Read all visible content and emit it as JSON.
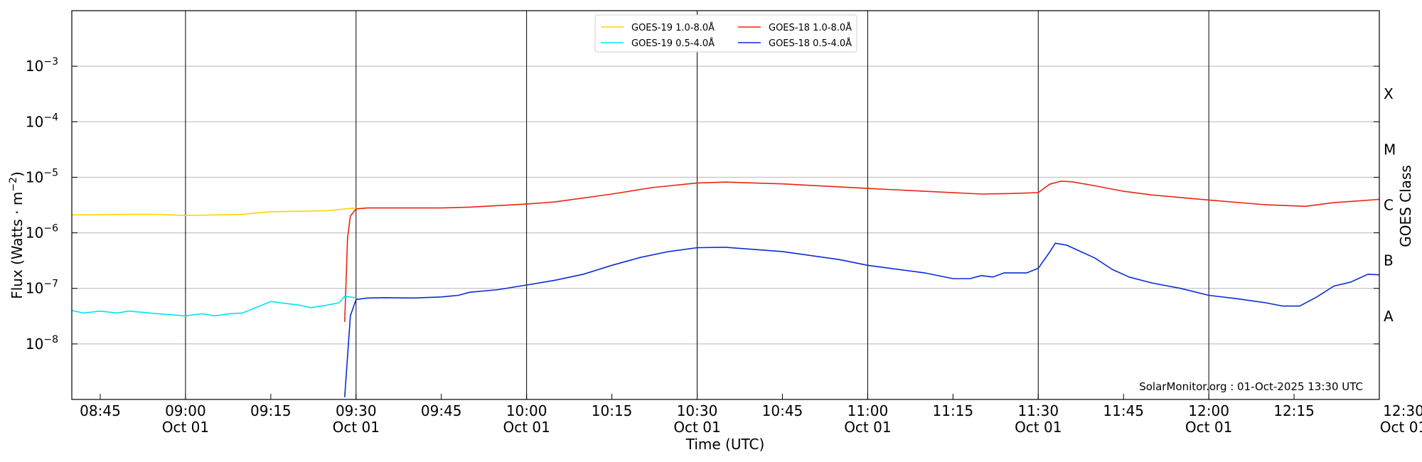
{
  "chart_data": {
    "type": "line",
    "xlabel": "Time (UTC)",
    "ylabel_main": "Flux (Watts · m",
    "ylabel_sup": "−2",
    "ylabel_close": ")",
    "right_axis_label": "GOES Class",
    "credit": "SolarMonitor.org : 01-Oct-2025 13:30 UTC",
    "x_range": [
      "08:40",
      "12:30"
    ],
    "y_scale": "log",
    "ylim": [
      1e-09,
      0.01
    ],
    "grid": "horizontal and vertical",
    "legend_position": "top-center",
    "x_ticks": [
      {
        "time": "08:45",
        "label": "08:45",
        "date": ""
      },
      {
        "time": "09:00",
        "label": "09:00",
        "date": "Oct 01"
      },
      {
        "time": "09:15",
        "label": "09:15",
        "date": ""
      },
      {
        "time": "09:30",
        "label": "09:30",
        "date": "Oct 01"
      },
      {
        "time": "09:45",
        "label": "09:45",
        "date": ""
      },
      {
        "time": "10:00",
        "label": "10:00",
        "date": "Oct 01"
      },
      {
        "time": "10:15",
        "label": "10:15",
        "date": ""
      },
      {
        "time": "10:30",
        "label": "10:30",
        "date": "Oct 01"
      },
      {
        "time": "10:45",
        "label": "10:45",
        "date": ""
      },
      {
        "time": "11:00",
        "label": "11:00",
        "date": "Oct 01"
      },
      {
        "time": "11:15",
        "label": "11:15",
        "date": ""
      },
      {
        "time": "11:30",
        "label": "11:30",
        "date": "Oct 01"
      },
      {
        "time": "11:45",
        "label": "11:45",
        "date": ""
      },
      {
        "time": "12:00",
        "label": "12:00",
        "date": "Oct 01"
      },
      {
        "time": "12:15",
        "label": "12:15",
        "date": ""
      },
      {
        "time": "12:30",
        "label": "12:30",
        "date": "Oct 01"
      }
    ],
    "y_ticks": [
      {
        "value": 1e-08,
        "base": "10",
        "exp": "−8"
      },
      {
        "value": 1e-07,
        "base": "10",
        "exp": "−7"
      },
      {
        "value": 1e-06,
        "base": "10",
        "exp": "−6"
      },
      {
        "value": 1e-05,
        "base": "10",
        "exp": "−5"
      },
      {
        "value": 0.0001,
        "base": "10",
        "exp": "−4"
      },
      {
        "value": 0.001,
        "base": "10",
        "exp": "−3"
      }
    ],
    "goes_classes": [
      {
        "label": "A",
        "value": 3.16e-08
      },
      {
        "label": "B",
        "value": 3.16e-07
      },
      {
        "label": "C",
        "value": 3.16e-06
      },
      {
        "label": "M",
        "value": 3.16e-05
      },
      {
        "label": "X",
        "value": 0.000316
      }
    ],
    "series": [
      {
        "name": "GOES-19 1.0-8.0Å",
        "color": "#ffd400",
        "points": [
          [
            "08:40",
            2.1e-06
          ],
          [
            "08:50",
            2.15e-06
          ],
          [
            "08:55",
            2.15e-06
          ],
          [
            "09:00",
            2.05e-06
          ],
          [
            "09:05",
            2.1e-06
          ],
          [
            "09:10",
            2.15e-06
          ],
          [
            "09:15",
            2.4e-06
          ],
          [
            "09:20",
            2.45e-06
          ],
          [
            "09:25",
            2.5e-06
          ],
          [
            "09:28",
            2.7e-06
          ],
          [
            "09:30",
            2.8e-06
          ]
        ]
      },
      {
        "name": "GOES-18 1.0-8.0Å",
        "color": "#e8250f",
        "points": [
          [
            "09:28",
            2.5e-08
          ],
          [
            "09:28:30",
            8e-07
          ],
          [
            "09:29",
            2e-06
          ],
          [
            "09:30",
            2.7e-06
          ],
          [
            "09:32",
            2.8e-06
          ],
          [
            "09:45",
            2.8e-06
          ],
          [
            "09:50",
            2.9e-06
          ],
          [
            "10:00",
            3.3e-06
          ],
          [
            "10:05",
            3.6e-06
          ],
          [
            "10:15",
            5e-06
          ],
          [
            "10:22",
            6.5e-06
          ],
          [
            "10:30",
            7.9e-06
          ],
          [
            "10:35",
            8.2e-06
          ],
          [
            "10:45",
            7.6e-06
          ],
          [
            "11:00",
            6.3e-06
          ],
          [
            "11:10",
            5.6e-06
          ],
          [
            "11:20",
            5e-06
          ],
          [
            "11:25",
            5.1e-06
          ],
          [
            "11:30",
            5.3e-06
          ],
          [
            "11:32",
            7.5e-06
          ],
          [
            "11:34",
            8.5e-06
          ],
          [
            "11:36",
            8.3e-06
          ],
          [
            "11:40",
            7e-06
          ],
          [
            "11:45",
            5.6e-06
          ],
          [
            "11:50",
            4.8e-06
          ],
          [
            "12:00",
            3.9e-06
          ],
          [
            "12:10",
            3.2e-06
          ],
          [
            "12:17",
            3e-06
          ],
          [
            "12:22",
            3.5e-06
          ],
          [
            "12:30",
            4e-06
          ]
        ]
      },
      {
        "name": "GOES-19 0.5-4.0Å",
        "color": "#00e5f0",
        "points": [
          [
            "08:40",
            4e-08
          ],
          [
            "08:42",
            3.6e-08
          ],
          [
            "08:45",
            3.9e-08
          ],
          [
            "08:48",
            3.6e-08
          ],
          [
            "08:50",
            3.9e-08
          ],
          [
            "08:55",
            3.5e-08
          ],
          [
            "09:00",
            3.2e-08
          ],
          [
            "09:03",
            3.5e-08
          ],
          [
            "09:05",
            3.2e-08
          ],
          [
            "09:08",
            3.5e-08
          ],
          [
            "09:10",
            3.6e-08
          ],
          [
            "09:15",
            5.8e-08
          ],
          [
            "09:18",
            5.3e-08
          ],
          [
            "09:20",
            5e-08
          ],
          [
            "09:22",
            4.5e-08
          ],
          [
            "09:25",
            5e-08
          ],
          [
            "09:27",
            5.5e-08
          ],
          [
            "09:28",
            7.2e-08
          ],
          [
            "09:30",
            6.8e-08
          ]
        ]
      },
      {
        "name": "GOES-18 0.5-4.0Å",
        "color": "#0a2bd8",
        "points": [
          [
            "09:28",
            1.1e-09
          ],
          [
            "09:29",
            3.2e-08
          ],
          [
            "09:30",
            6.3e-08
          ],
          [
            "09:32",
            6.7e-08
          ],
          [
            "09:35",
            6.8e-08
          ],
          [
            "09:40",
            6.7e-08
          ],
          [
            "09:45",
            7e-08
          ],
          [
            "09:48",
            7.5e-08
          ],
          [
            "09:50",
            8.5e-08
          ],
          [
            "09:55",
            9.5e-08
          ],
          [
            "10:00",
            1.15e-07
          ],
          [
            "10:05",
            1.4e-07
          ],
          [
            "10:10",
            1.8e-07
          ],
          [
            "10:15",
            2.6e-07
          ],
          [
            "10:20",
            3.6e-07
          ],
          [
            "10:25",
            4.6e-07
          ],
          [
            "10:30",
            5.4e-07
          ],
          [
            "10:35",
            5.5e-07
          ],
          [
            "10:45",
            4.6e-07
          ],
          [
            "10:55",
            3.3e-07
          ],
          [
            "11:00",
            2.6e-07
          ],
          [
            "11:10",
            1.9e-07
          ],
          [
            "11:15",
            1.5e-07
          ],
          [
            "11:18",
            1.5e-07
          ],
          [
            "11:20",
            1.7e-07
          ],
          [
            "11:22",
            1.6e-07
          ],
          [
            "11:24",
            1.9e-07
          ],
          [
            "11:28",
            1.9e-07
          ],
          [
            "11:30",
            2.3e-07
          ],
          [
            "11:32",
            4.5e-07
          ],
          [
            "11:33",
            6.5e-07
          ],
          [
            "11:35",
            6e-07
          ],
          [
            "11:40",
            3.5e-07
          ],
          [
            "11:43",
            2.2e-07
          ],
          [
            "11:46",
            1.6e-07
          ],
          [
            "11:50",
            1.25e-07
          ],
          [
            "11:55",
            1e-07
          ],
          [
            "12:00",
            7.5e-08
          ],
          [
            "12:05",
            6.5e-08
          ],
          [
            "12:10",
            5.5e-08
          ],
          [
            "12:13",
            4.8e-08
          ],
          [
            "12:16",
            4.8e-08
          ],
          [
            "12:19",
            7e-08
          ],
          [
            "12:22",
            1.1e-07
          ],
          [
            "12:25",
            1.3e-07
          ],
          [
            "12:28",
            1.8e-07
          ],
          [
            "12:30",
            1.75e-07
          ]
        ]
      }
    ],
    "legend_order": [
      0,
      2,
      1,
      3
    ]
  }
}
